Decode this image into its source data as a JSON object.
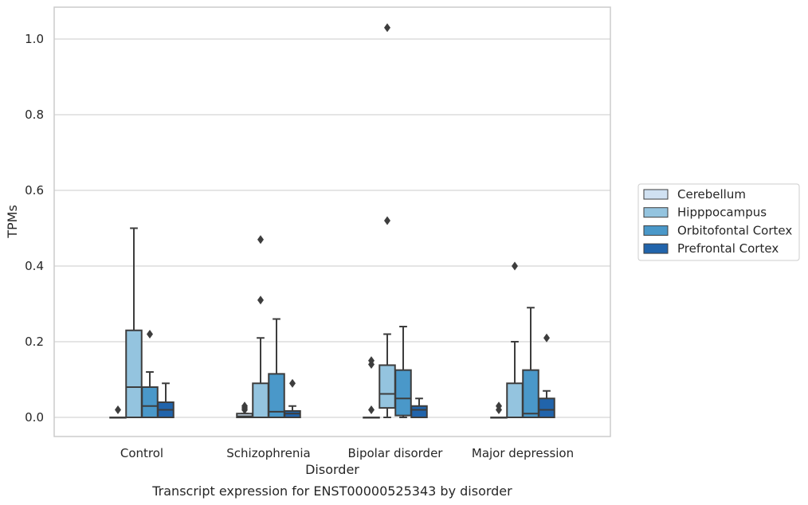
{
  "chart_data": {
    "type": "boxplot",
    "caption": "Transcript expression for ENST00000525343 by disorder",
    "xlabel": "Disorder",
    "ylabel": "TPMs",
    "ylim": [
      -0.05,
      1.08
    ],
    "yticks": [
      0.0,
      0.2,
      0.4,
      0.6,
      0.8,
      1.0
    ],
    "ytick_labels": [
      "0.0",
      "0.2",
      "0.4",
      "0.6",
      "0.8",
      "1.0"
    ],
    "grid": "horizontal",
    "legend_position": "right",
    "categories": [
      "Control",
      "Schizophrenia",
      "Bipolar disorder",
      "Major depression"
    ],
    "series": [
      {
        "name": "Cerebellum",
        "color": "#d0e1f2",
        "boxes": [
          {
            "q1": 0.0,
            "median": 0.0,
            "q3": 0.0,
            "whisker_low": 0.0,
            "whisker_high": 0.0,
            "outliers": [
              0.02
            ]
          },
          {
            "q1": 0.0,
            "median": 0.003,
            "q3": 0.01,
            "whisker_low": 0.0,
            "whisker_high": 0.01,
            "outliers": [
              0.02,
              0.025,
              0.03
            ]
          },
          {
            "q1": 0.0,
            "median": 0.0,
            "q3": 0.0,
            "whisker_low": 0.0,
            "whisker_high": 0.0,
            "outliers": [
              0.02,
              0.14,
              0.15
            ]
          },
          {
            "q1": 0.0,
            "median": 0.0,
            "q3": 0.0,
            "whisker_low": 0.0,
            "whisker_high": 0.0,
            "outliers": [
              0.02,
              0.03
            ]
          }
        ]
      },
      {
        "name": "Hipppocampus",
        "color": "#94c4df",
        "boxes": [
          {
            "q1": 0.0,
            "median": 0.08,
            "q3": 0.23,
            "whisker_low": 0.0,
            "whisker_high": 0.5,
            "outliers": []
          },
          {
            "q1": 0.0,
            "median": 0.0,
            "q3": 0.09,
            "whisker_low": 0.0,
            "whisker_high": 0.21,
            "outliers": [
              0.31,
              0.47
            ]
          },
          {
            "q1": 0.025,
            "median": 0.062,
            "q3": 0.138,
            "whisker_low": 0.0,
            "whisker_high": 0.22,
            "outliers": [
              0.52,
              1.03
            ]
          },
          {
            "q1": 0.0,
            "median": 0.0,
            "q3": 0.09,
            "whisker_low": 0.0,
            "whisker_high": 0.2,
            "outliers": [
              0.4
            ]
          }
        ]
      },
      {
        "name": "Orbitofontal Cortex",
        "color": "#4a98c9",
        "boxes": [
          {
            "q1": 0.0,
            "median": 0.03,
            "q3": 0.08,
            "whisker_low": 0.0,
            "whisker_high": 0.12,
            "outliers": [
              0.22
            ]
          },
          {
            "q1": 0.0,
            "median": 0.015,
            "q3": 0.115,
            "whisker_low": 0.0,
            "whisker_high": 0.26,
            "outliers": []
          },
          {
            "q1": 0.005,
            "median": 0.05,
            "q3": 0.125,
            "whisker_low": 0.0,
            "whisker_high": 0.24,
            "outliers": []
          },
          {
            "q1": 0.0,
            "median": 0.01,
            "q3": 0.125,
            "whisker_low": 0.0,
            "whisker_high": 0.29,
            "outliers": []
          }
        ]
      },
      {
        "name": "Prefrontal Cortex",
        "color": "#2164ab",
        "boxes": [
          {
            "q1": 0.0,
            "median": 0.02,
            "q3": 0.04,
            "whisker_low": 0.0,
            "whisker_high": 0.09,
            "outliers": []
          },
          {
            "q1": 0.0,
            "median": 0.01,
            "q3": 0.017,
            "whisker_low": 0.0,
            "whisker_high": 0.03,
            "outliers": [
              0.09
            ]
          },
          {
            "q1": 0.0,
            "median": 0.02,
            "q3": 0.03,
            "whisker_low": 0.0,
            "whisker_high": 0.05,
            "outliers": []
          },
          {
            "q1": 0.0,
            "median": 0.02,
            "q3": 0.05,
            "whisker_low": 0.0,
            "whisker_high": 0.07,
            "outliers": [
              0.21
            ]
          }
        ]
      }
    ]
  }
}
